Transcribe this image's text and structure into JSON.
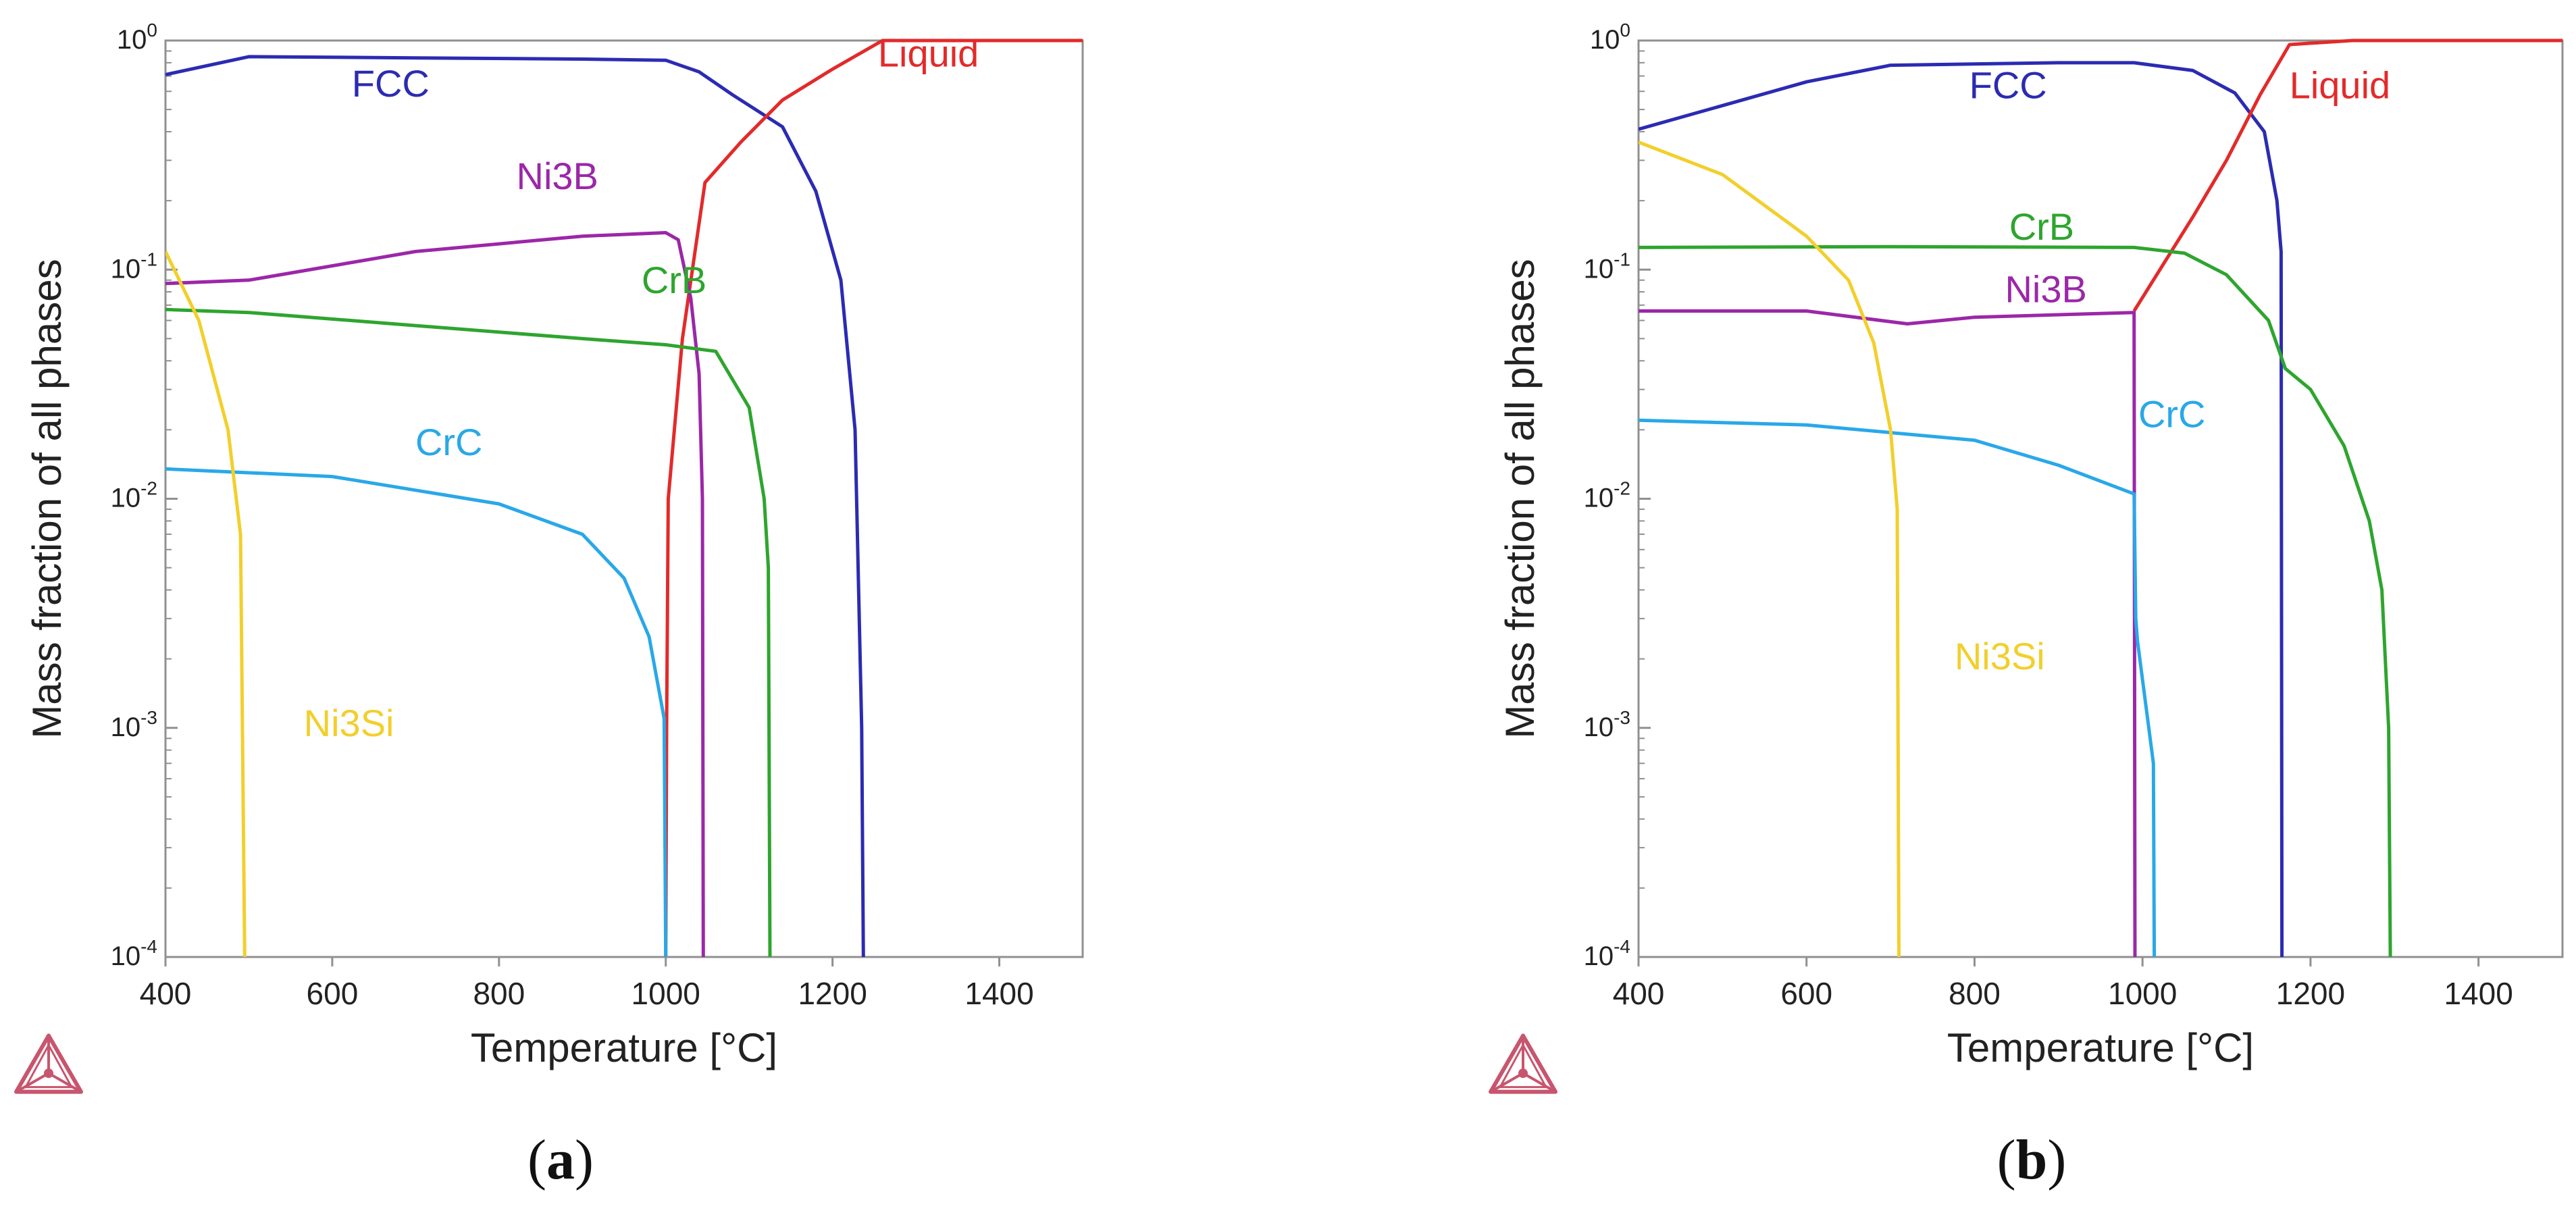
{
  "figure": {
    "panels": [
      {
        "letter": "a",
        "open": "(",
        "close": ")"
      },
      {
        "letter": "b",
        "open": "(",
        "close": ")"
      }
    ]
  },
  "colors": {
    "FCC": "#2b2bb3",
    "Liquid": "#e32a2a",
    "Ni3B": "#9b27a8",
    "CrB": "#2ea52e",
    "CrC": "#29a8e8",
    "Ni3Si": "#f2cf2c",
    "axis": "#909090",
    "text": "#222222",
    "logo": "#c8556e"
  },
  "chart_data": [
    {
      "type": "line",
      "panel": "a",
      "xlabel": "Temperature [°C]",
      "ylabel": "Mass fraction of all phases",
      "xlim": [
        400,
        1500
      ],
      "ylim": [
        0.0001,
        1
      ],
      "yscale": "log",
      "xticks": [
        400,
        600,
        800,
        1000,
        1200,
        1400
      ],
      "yticks": [
        {
          "value": 1,
          "base": "10",
          "exp": "0"
        },
        {
          "value": 0.1,
          "base": "10",
          "exp": "-1"
        },
        {
          "value": 0.01,
          "base": "10",
          "exp": "-2"
        },
        {
          "value": 0.001,
          "base": "10",
          "exp": "-3"
        },
        {
          "value": 0.0001,
          "base": "10",
          "exp": "-4"
        }
      ],
      "series": [
        {
          "name": "FCC",
          "points": [
            [
              400,
              0.71
            ],
            [
              500,
              0.85
            ],
            [
              700,
              0.84
            ],
            [
              900,
              0.83
            ],
            [
              1000,
              0.82
            ],
            [
              1040,
              0.73
            ],
            [
              1080,
              0.58
            ],
            [
              1140,
              0.42
            ],
            [
              1180,
              0.22
            ],
            [
              1210,
              0.09
            ],
            [
              1227,
              0.02
            ],
            [
              1235,
              0.001
            ],
            [
              1237,
              0.0001
            ]
          ]
        },
        {
          "name": "Liquid",
          "points": [
            [
              1000,
              0.0001
            ],
            [
              1001,
              0.001
            ],
            [
              1003,
              0.01
            ],
            [
              1020,
              0.05
            ],
            [
              1047,
              0.24
            ],
            [
              1090,
              0.36
            ],
            [
              1140,
              0.55
            ],
            [
              1200,
              0.75
            ],
            [
              1260,
              1.0
            ],
            [
              1500,
              1.0
            ]
          ]
        },
        {
          "name": "Ni3B",
          "points": [
            [
              400,
              0.087
            ],
            [
              500,
              0.09
            ],
            [
              700,
              0.12
            ],
            [
              900,
              0.14
            ],
            [
              1000,
              0.145
            ],
            [
              1015,
              0.135
            ],
            [
              1030,
              0.075
            ],
            [
              1040,
              0.035
            ],
            [
              1044,
              0.01
            ],
            [
              1045,
              0.0001
            ]
          ]
        },
        {
          "name": "CrB",
          "points": [
            [
              400,
              0.067
            ],
            [
              500,
              0.065
            ],
            [
              700,
              0.057
            ],
            [
              900,
              0.05
            ],
            [
              1000,
              0.047
            ],
            [
              1060,
              0.044
            ],
            [
              1100,
              0.025
            ],
            [
              1118,
              0.01
            ],
            [
              1123,
              0.005
            ],
            [
              1125,
              0.0001
            ]
          ]
        },
        {
          "name": "CrC",
          "points": [
            [
              400,
              0.0135
            ],
            [
              600,
              0.0125
            ],
            [
              800,
              0.0095
            ],
            [
              900,
              0.007
            ],
            [
              950,
              0.0045
            ],
            [
              980,
              0.0025
            ],
            [
              998,
              0.0011
            ],
            [
              1000,
              0.0001
            ]
          ]
        },
        {
          "name": "Ni3Si",
          "points": [
            [
              400,
              0.12
            ],
            [
              440,
              0.06
            ],
            [
              475,
              0.02
            ],
            [
              490,
              0.007
            ],
            [
              495,
              0.0001
            ]
          ]
        }
      ],
      "labels": [
        {
          "text": "FCC",
          "series": "FCC",
          "x": 670,
          "y": 0.57
        },
        {
          "text": "Liquid",
          "series": "Liquid",
          "x": 1315,
          "y": 0.77
        },
        {
          "text": "Ni3B",
          "series": "Ni3B",
          "x": 870,
          "y": 0.225
        },
        {
          "text": "CrB",
          "series": "CrB",
          "x": 1010,
          "y": 0.079
        },
        {
          "text": "CrC",
          "series": "CrC",
          "x": 740,
          "y": 0.0155
        },
        {
          "text": "Ni3Si",
          "series": "Ni3Si",
          "x": 620,
          "y": 0.00092
        }
      ]
    },
    {
      "type": "line",
      "panel": "b",
      "xlabel": "Temperature [°C]",
      "ylabel": "Mass fraction of all phases",
      "xlim": [
        400,
        1500
      ],
      "ylim": [
        0.0001,
        1
      ],
      "yscale": "log",
      "xticks": [
        400,
        600,
        800,
        1000,
        1200,
        1400
      ],
      "yticks": [
        {
          "value": 1,
          "base": "10",
          "exp": "0"
        },
        {
          "value": 0.1,
          "base": "10",
          "exp": "-1"
        },
        {
          "value": 0.01,
          "base": "10",
          "exp": "-2"
        },
        {
          "value": 0.001,
          "base": "10",
          "exp": "-3"
        },
        {
          "value": 0.0001,
          "base": "10",
          "exp": "-4"
        }
      ],
      "series": [
        {
          "name": "FCC",
          "points": [
            [
              400,
              0.41
            ],
            [
              500,
              0.52
            ],
            [
              600,
              0.66
            ],
            [
              700,
              0.78
            ],
            [
              900,
              0.8
            ],
            [
              990,
              0.8
            ],
            [
              1060,
              0.74
            ],
            [
              1110,
              0.59
            ],
            [
              1145,
              0.4
            ],
            [
              1160,
              0.2
            ],
            [
              1165,
              0.12
            ],
            [
              1166,
              0.0001
            ]
          ]
        },
        {
          "name": "Liquid",
          "points": [
            [
              990,
              0.066
            ],
            [
              1060,
              0.17
            ],
            [
              1100,
              0.3
            ],
            [
              1140,
              0.58
            ],
            [
              1175,
              0.96
            ],
            [
              1250,
              1.0
            ],
            [
              1500,
              1.0
            ]
          ]
        },
        {
          "name": "CrB",
          "points": [
            [
              400,
              0.125
            ],
            [
              700,
              0.126
            ],
            [
              990,
              0.125
            ],
            [
              1050,
              0.118
            ],
            [
              1100,
              0.095
            ],
            [
              1150,
              0.06
            ],
            [
              1170,
              0.037
            ],
            [
              1200,
              0.03
            ],
            [
              1240,
              0.017
            ],
            [
              1270,
              0.008
            ],
            [
              1285,
              0.004
            ],
            [
              1293,
              0.001
            ],
            [
              1295,
              0.0001
            ]
          ]
        },
        {
          "name": "Ni3B",
          "points": [
            [
              400,
              0.066
            ],
            [
              600,
              0.066
            ],
            [
              720,
              0.058
            ],
            [
              800,
              0.062
            ],
            [
              990,
              0.065
            ],
            [
              991,
              0.0001
            ]
          ]
        },
        {
          "name": "CrC",
          "points": [
            [
              400,
              0.022
            ],
            [
              600,
              0.021
            ],
            [
              800,
              0.018
            ],
            [
              900,
              0.014
            ],
            [
              990,
              0.0105
            ],
            [
              992,
              0.003
            ],
            [
              994,
              0.0024
            ],
            [
              1013,
              0.0007
            ],
            [
              1014,
              0.0001
            ]
          ]
        },
        {
          "name": "Ni3Si",
          "points": [
            [
              400,
              0.36
            ],
            [
              500,
              0.26
            ],
            [
              600,
              0.14
            ],
            [
              650,
              0.09
            ],
            [
              680,
              0.048
            ],
            [
              700,
              0.02
            ],
            [
              708,
              0.009
            ],
            [
              710,
              0.0001
            ]
          ]
        }
      ],
      "labels": [
        {
          "text": "FCC",
          "series": "FCC",
          "x": 840,
          "y": 0.56
        },
        {
          "text": "Liquid",
          "series": "Liquid",
          "x": 1235,
          "y": 0.56
        },
        {
          "text": "CrB",
          "series": "CrB",
          "x": 880,
          "y": 0.135
        },
        {
          "text": "Ni3B",
          "series": "Ni3B",
          "x": 885,
          "y": 0.072
        },
        {
          "text": "CrC",
          "series": "CrC",
          "x": 1035,
          "y": 0.0205
        },
        {
          "text": "Ni3Si",
          "series": "Ni3Si",
          "x": 830,
          "y": 0.0018
        }
      ]
    }
  ]
}
